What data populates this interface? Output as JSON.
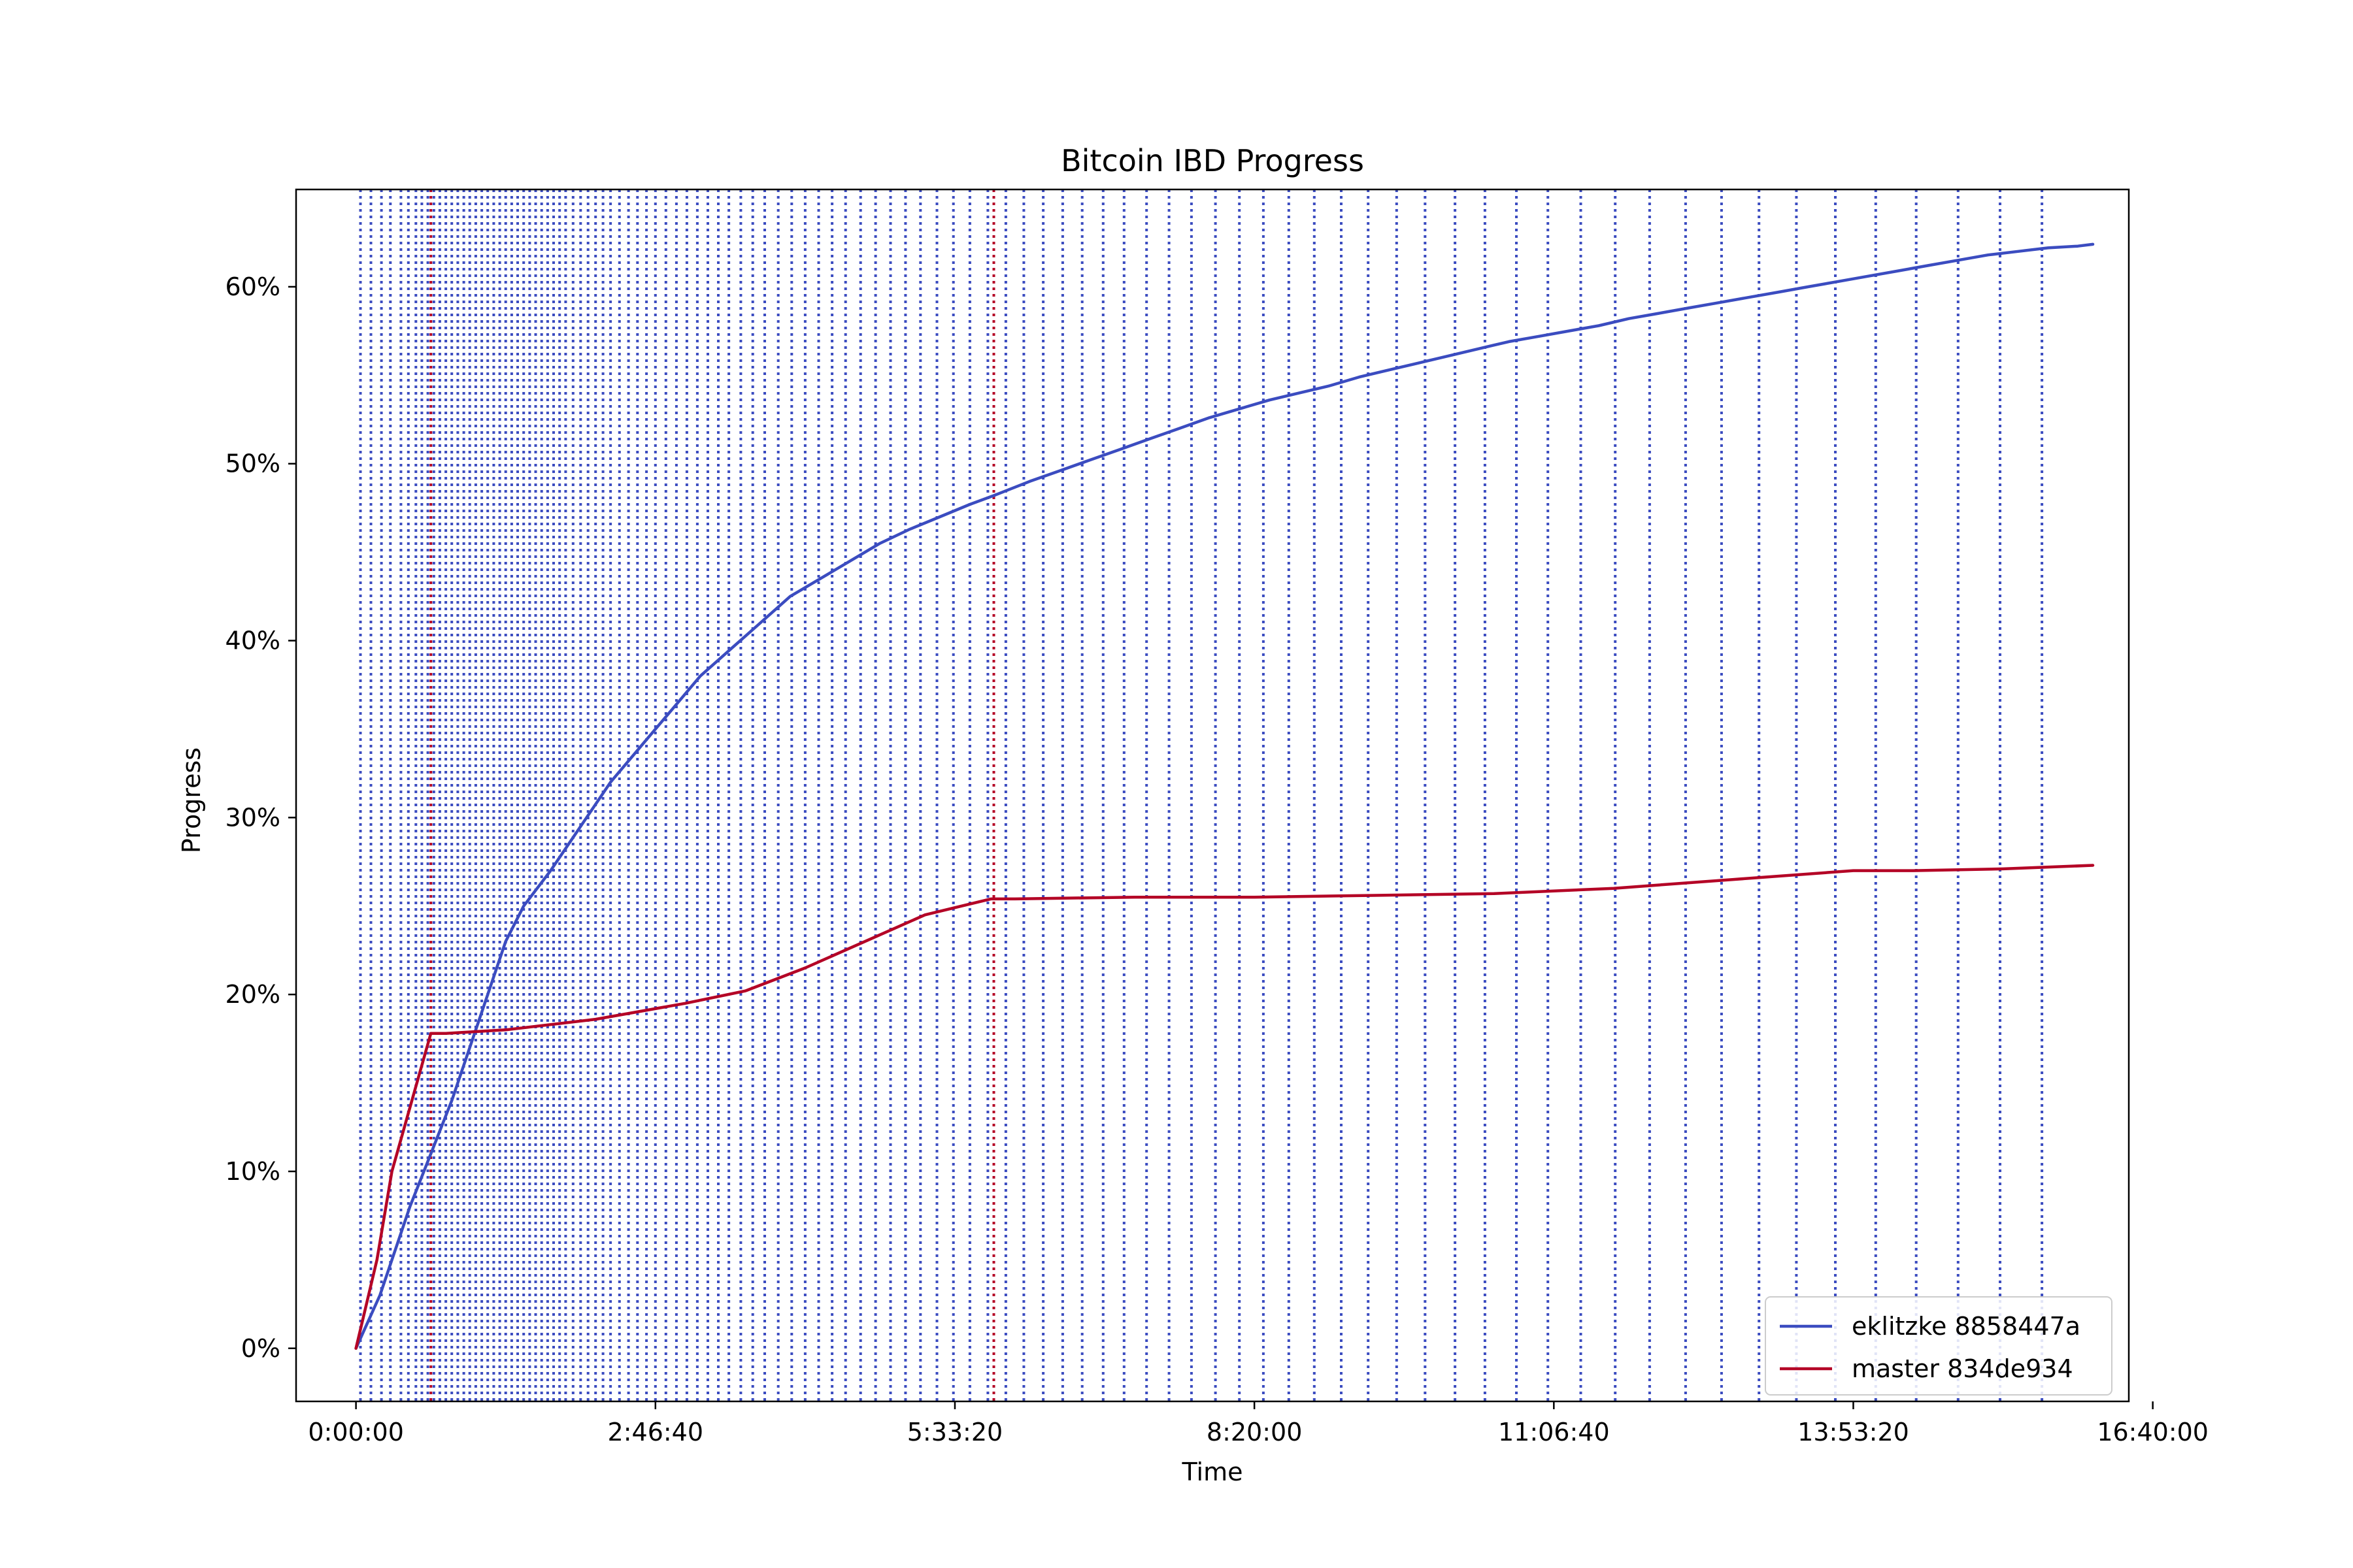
{
  "chart_data": {
    "type": "line",
    "title": "Bitcoin IBD Progress",
    "xlabel": "Time",
    "ylabel": "Progress",
    "x_unit": "seconds",
    "xlim": [
      -2000,
      59200
    ],
    "ylim": [
      -3,
      65.5
    ],
    "x_ticks": [
      {
        "value": 0,
        "label": "0:00:00"
      },
      {
        "value": 10000,
        "label": "2:46:40"
      },
      {
        "value": 20000,
        "label": "5:33:20"
      },
      {
        "value": 30000,
        "label": "8:20:00"
      },
      {
        "value": 40000,
        "label": "11:06:40"
      },
      {
        "value": 50000,
        "label": "13:53:20"
      },
      {
        "value": 60000,
        "label": "16:40:00"
      }
    ],
    "y_ticks": [
      {
        "value": 0,
        "label": "0%"
      },
      {
        "value": 10,
        "label": "10%"
      },
      {
        "value": 20,
        "label": "20%"
      },
      {
        "value": 30,
        "label": "30%"
      },
      {
        "value": 40,
        "label": "40%"
      },
      {
        "value": 50,
        "label": "50%"
      },
      {
        "value": 60,
        "label": "60%"
      }
    ],
    "grid": false,
    "legend_position": "lower-right",
    "series": [
      {
        "name": "eklitzke 8858447a",
        "color": "#3b4cc0",
        "x": [
          0,
          800,
          1200,
          1800,
          2500,
          3200,
          4000,
          5000,
          5600,
          6500,
          7500,
          8500,
          9500,
          10500,
          11500,
          12500,
          13500,
          14500,
          15500,
          16500,
          17500,
          18500,
          19500,
          20500,
          21300,
          22500,
          23500,
          24500,
          25500,
          26500,
          27500,
          28500,
          29500,
          30500,
          31500,
          32500,
          33500,
          34500,
          35500,
          36500,
          37500,
          38500,
          39500,
          40500,
          41500,
          42500,
          43500,
          44500,
          45500,
          46500,
          47500,
          48500,
          49500,
          50500,
          51500,
          52500,
          53500,
          54500,
          55500,
          56500,
          57500,
          58000
        ],
        "values": [
          0,
          3,
          5,
          8,
          11,
          14,
          18,
          23,
          25,
          27,
          29.5,
          32,
          34,
          36,
          38,
          39.5,
          41,
          42.5,
          43.5,
          44.5,
          45.5,
          46.3,
          47,
          47.7,
          48.2,
          49,
          49.6,
          50.2,
          50.8,
          51.4,
          52,
          52.6,
          53.1,
          53.6,
          54,
          54.4,
          54.9,
          55.3,
          55.7,
          56.1,
          56.5,
          56.9,
          57.2,
          57.5,
          57.8,
          58.2,
          58.5,
          58.8,
          59.1,
          59.4,
          59.7,
          60,
          60.3,
          60.6,
          60.9,
          61.2,
          61.5,
          61.8,
          62,
          62.2,
          62.3,
          62.4
        ]
      },
      {
        "name": "master 834de934",
        "color": "#b40426",
        "x": [
          0,
          700,
          1200,
          2500,
          3000,
          5000,
          8000,
          11000,
          13000,
          15000,
          17000,
          19000,
          21200,
          22000,
          26000,
          30000,
          34000,
          38000,
          42000,
          46000,
          50000,
          52000,
          55000,
          58000
        ],
        "values": [
          0,
          5,
          10,
          17.8,
          17.8,
          18,
          18.6,
          19.5,
          20.2,
          21.5,
          23,
          24.5,
          25.4,
          25.4,
          25.5,
          25.5,
          25.6,
          25.7,
          26,
          26.5,
          27,
          27,
          27.1,
          27.3
        ]
      }
    ],
    "checkpoint_lines": [
      {
        "series": "eklitzke 8858447a",
        "color": "#3b4cc0",
        "style": "dotted",
        "x": [
          150,
          500,
          850,
          1150,
          1500,
          1750,
          2000,
          2200,
          2400,
          2600,
          2800,
          3000,
          3200,
          3400,
          3600,
          3800,
          4000,
          4200,
          4400,
          4600,
          4800,
          5000,
          5200,
          5400,
          5600,
          5800,
          6000,
          6200,
          6400,
          6600,
          6800,
          7000,
          7250,
          7500,
          7750,
          8000,
          8250,
          8500,
          8800,
          9100,
          9400,
          9700,
          10000,
          10350,
          10700,
          11050,
          11400,
          11750,
          12100,
          12450,
          12850,
          13250,
          13650,
          14100,
          14550,
          15000,
          15450,
          15900,
          16350,
          16850,
          17350,
          17850,
          18350,
          18850,
          19400,
          19950,
          20500,
          21100,
          21700,
          22300,
          22950,
          23600,
          24250,
          24950,
          25650,
          26400,
          27150,
          27900,
          28700,
          29500,
          30300,
          31150,
          32000,
          32900,
          33800,
          34750,
          35700,
          36700,
          37700,
          38750,
          39800,
          40900,
          42050,
          43200,
          44400,
          45600,
          46850,
          48100,
          49400,
          50750,
          52100,
          53500,
          54900,
          56300
        ]
      },
      {
        "series": "master 834de934",
        "color": "#b40426",
        "style": "dotted",
        "x": [
          2500,
          21300
        ]
      }
    ]
  }
}
